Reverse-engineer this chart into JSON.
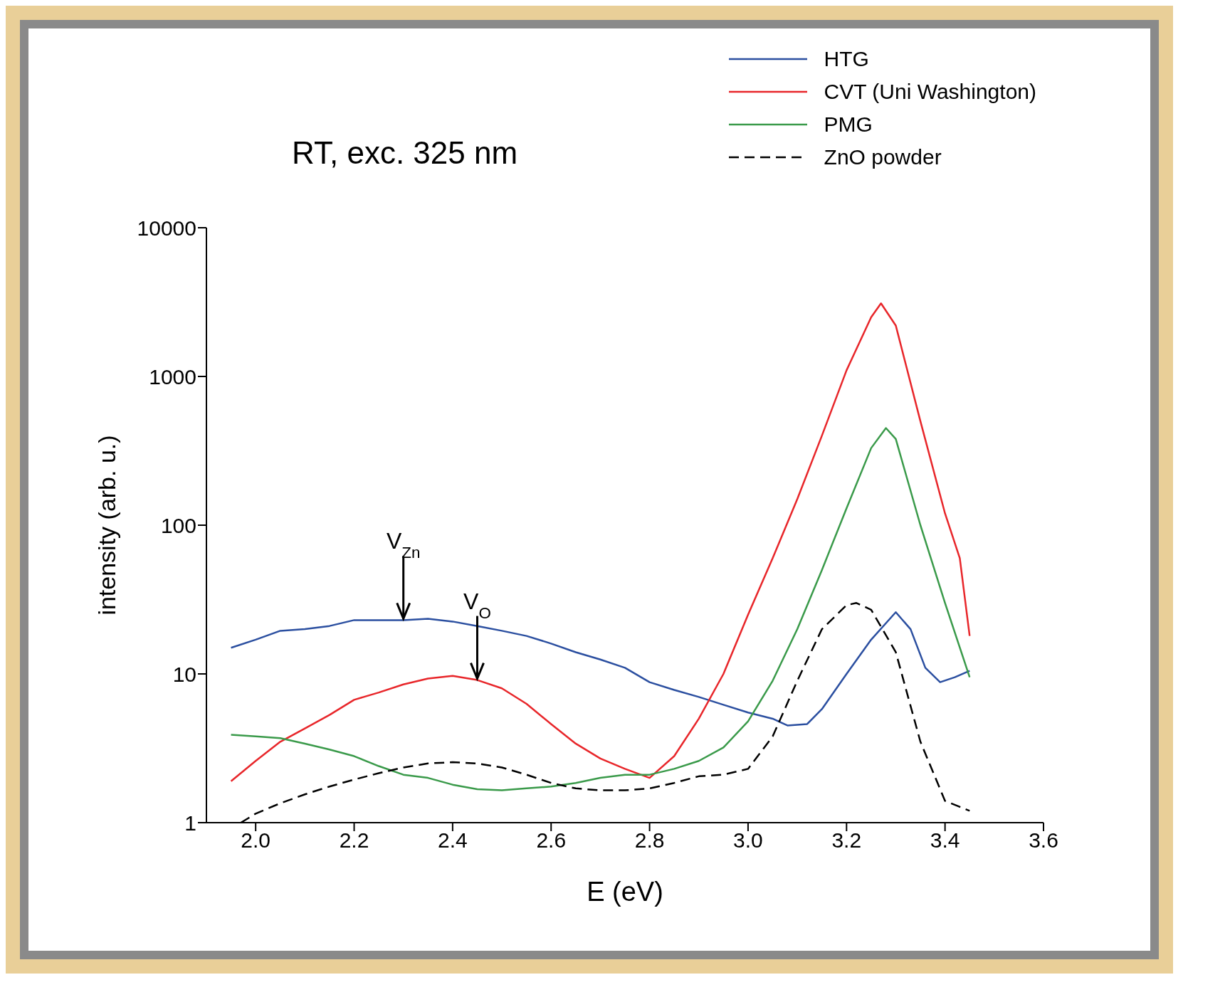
{
  "chart_data": {
    "type": "line",
    "title": "RT, exc. 325 nm",
    "xlabel": "E (eV)",
    "ylabel": "intensity (arb. u.)",
    "log": "y",
    "legend": "top right",
    "xlim": [
      1.9,
      3.6
    ],
    "xticks": [
      {
        "value": 2.0,
        "label": "2.0"
      },
      {
        "value": 2.2,
        "label": "2.2"
      },
      {
        "value": 2.4,
        "label": "2.4"
      },
      {
        "value": 2.6,
        "label": "2.6"
      },
      {
        "value": 2.8,
        "label": "2.8"
      },
      {
        "value": 3.0,
        "label": "3.0"
      },
      {
        "value": 3.2,
        "label": "3.2"
      },
      {
        "value": 3.4,
        "label": "3.4"
      },
      {
        "value": 3.6,
        "label": "3.6"
      }
    ],
    "ylim": [
      1,
      10000
    ],
    "yticks": [
      1,
      10,
      100,
      1000,
      10000
    ],
    "annotations": [
      {
        "text": "V$_{Zn}$",
        "x": 2.3,
        "y": 23
      },
      {
        "text": "V$_{O}$",
        "x": 2.45,
        "y": 9.1
      }
    ],
    "series": [
      {
        "name": "HTG",
        "color": "#2b4fa0",
        "x": [
          1.95,
          2.0,
          2.05,
          2.1,
          2.15,
          2.2,
          2.3,
          2.35,
          2.4,
          2.45,
          2.5,
          2.55,
          2.6,
          2.65,
          2.7,
          2.75,
          2.8,
          2.85,
          2.9,
          2.95,
          3.0,
          3.05,
          3.08,
          3.12,
          3.15,
          3.2,
          3.25,
          3.3,
          3.33,
          3.36,
          3.39,
          3.42,
          3.45
        ],
        "values": [
          15,
          17,
          19.5,
          20,
          21,
          23,
          23,
          23.5,
          22.5,
          21,
          19.5,
          18,
          16,
          14,
          12.5,
          11,
          8.8,
          7.8,
          7,
          6.2,
          5.5,
          5,
          4.5,
          4.6,
          5.8,
          10,
          17,
          26,
          20,
          11,
          8.8,
          9.5,
          10.5
        ]
      },
      {
        "name": "CVT (Uni Washington)",
        "color": "#e8262a",
        "x": [
          1.95,
          2.0,
          2.05,
          2.1,
          2.15,
          2.2,
          2.25,
          2.3,
          2.35,
          2.4,
          2.45,
          2.5,
          2.55,
          2.6,
          2.65,
          2.7,
          2.75,
          2.8,
          2.85,
          2.9,
          2.95,
          3.0,
          3.05,
          3.1,
          3.15,
          3.2,
          3.25,
          3.27,
          3.3,
          3.35,
          3.4,
          3.43,
          3.45
        ],
        "values": [
          1.9,
          2.6,
          3.5,
          4.3,
          5.3,
          6.7,
          7.5,
          8.5,
          9.3,
          9.7,
          9.1,
          8,
          6.3,
          4.6,
          3.4,
          2.7,
          2.3,
          2,
          2.8,
          5,
          10,
          25,
          60,
          150,
          400,
          1100,
          2500,
          3100,
          2200,
          500,
          120,
          60,
          18
        ]
      },
      {
        "name": "PMG",
        "color": "#3a9a4a",
        "x": [
          1.95,
          2.0,
          2.05,
          2.1,
          2.15,
          2.2,
          2.25,
          2.3,
          2.35,
          2.4,
          2.45,
          2.5,
          2.55,
          2.6,
          2.65,
          2.7,
          2.75,
          2.8,
          2.85,
          2.9,
          2.95,
          3.0,
          3.05,
          3.1,
          3.15,
          3.2,
          3.25,
          3.28,
          3.3,
          3.35,
          3.4,
          3.45
        ],
        "values": [
          3.9,
          3.8,
          3.7,
          3.4,
          3.1,
          2.8,
          2.4,
          2.1,
          2,
          1.8,
          1.68,
          1.65,
          1.7,
          1.75,
          1.85,
          2,
          2.1,
          2.1,
          2.3,
          2.6,
          3.2,
          4.8,
          9,
          20,
          50,
          130,
          330,
          450,
          380,
          100,
          30,
          9.5
        ]
      },
      {
        "name": "ZnO powder",
        "color": "#000000",
        "line_style": "dashed",
        "x": [
          1.97,
          2.0,
          2.05,
          2.1,
          2.15,
          2.2,
          2.25,
          2.3,
          2.35,
          2.4,
          2.45,
          2.5,
          2.55,
          2.6,
          2.65,
          2.7,
          2.75,
          2.8,
          2.85,
          2.9,
          2.95,
          3.0,
          3.05,
          3.1,
          3.15,
          3.2,
          3.22,
          3.25,
          3.3,
          3.35,
          3.4,
          3.45
        ],
        "values": [
          1,
          1.15,
          1.35,
          1.55,
          1.75,
          1.95,
          2.15,
          2.35,
          2.5,
          2.55,
          2.5,
          2.35,
          2.1,
          1.85,
          1.7,
          1.65,
          1.65,
          1.7,
          1.85,
          2.05,
          2.1,
          2.3,
          3.8,
          9,
          20,
          29,
          30,
          27,
          14,
          3.5,
          1.4,
          1.2
        ]
      }
    ]
  }
}
